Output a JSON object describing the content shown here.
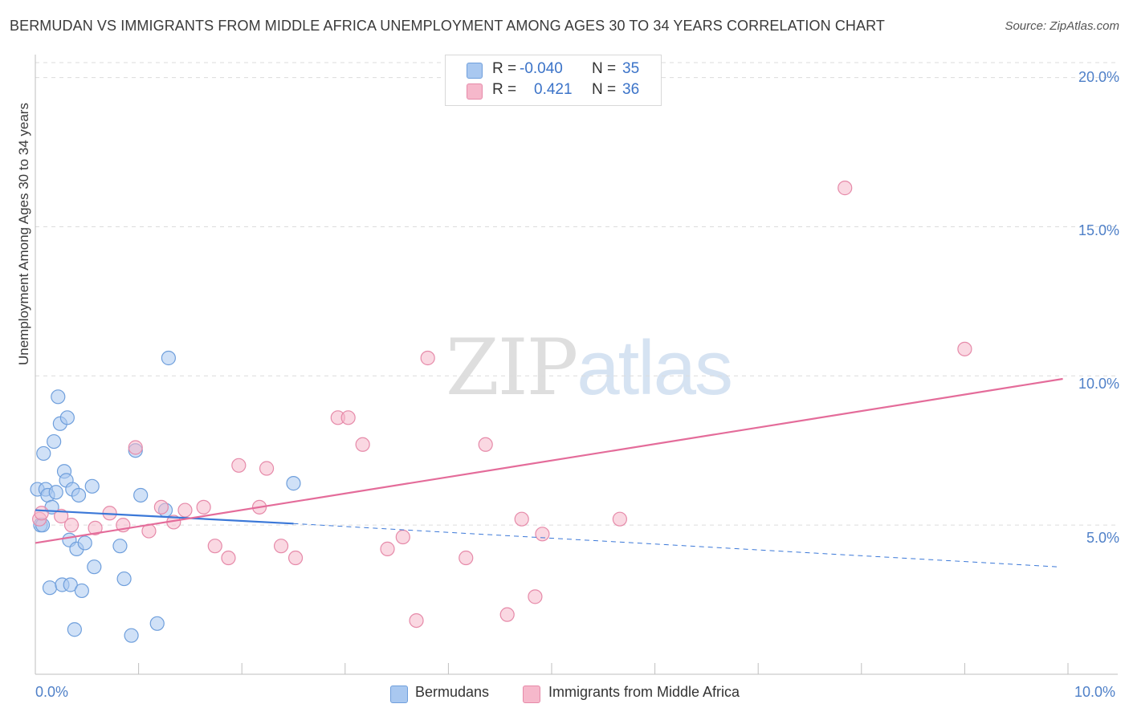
{
  "header": {
    "title": "BERMUDAN VS IMMIGRANTS FROM MIDDLE AFRICA UNEMPLOYMENT AMONG AGES 30 TO 34 YEARS CORRELATION CHART",
    "source": "Source: ZipAtlas.com"
  },
  "watermark": {
    "zip": "ZIP",
    "atlas": "atlas"
  },
  "legend": {
    "rows": [
      {
        "r_label": "R =",
        "r_value": "-0.040",
        "n_label": "N =",
        "n_value": "35",
        "color": "#a9c8f0"
      },
      {
        "r_label": "R =",
        "r_value": "0.421",
        "n_label": "N =",
        "n_value": "36",
        "color": "#f6b8cb"
      }
    ]
  },
  "bottom_legend": {
    "series1": "Bermudans",
    "series2": "Immigrants from Middle Africa"
  },
  "chart_data": {
    "type": "scatter",
    "title": "BERMUDAN VS IMMIGRANTS FROM MIDDLE AFRICA UNEMPLOYMENT AMONG AGES 30 TO 34 YEARS CORRELATION CHART",
    "xlabel": "",
    "ylabel": "Unemployment Among Ages 30 to 34 years",
    "xlim": [
      0,
      10
    ],
    "ylim": [
      0,
      20.5
    ],
    "x_tick_labels": [
      "0.0%",
      "10.0%"
    ],
    "y_ticks": [
      5,
      10,
      15,
      20
    ],
    "y_tick_labels": [
      "5.0%",
      "10.0%",
      "15.0%",
      "20.0%"
    ],
    "grid": true,
    "colors": {
      "bermudans": "#3b78d8",
      "bermudans_fill": "#a9c8f0",
      "middle_africa": "#e46c9a",
      "middle_africa_fill": "#f6b8cb"
    },
    "series": [
      {
        "name": "Bermudans",
        "points": [
          [
            0.02,
            6.2
          ],
          [
            0.05,
            5.0
          ],
          [
            0.07,
            5.0
          ],
          [
            0.08,
            7.4
          ],
          [
            0.1,
            6.2
          ],
          [
            0.12,
            6.0
          ],
          [
            0.14,
            2.9
          ],
          [
            0.16,
            5.6
          ],
          [
            0.18,
            7.8
          ],
          [
            0.2,
            6.1
          ],
          [
            0.22,
            9.3
          ],
          [
            0.24,
            8.4
          ],
          [
            0.26,
            3.0
          ],
          [
            0.28,
            6.8
          ],
          [
            0.3,
            6.5
          ],
          [
            0.31,
            8.6
          ],
          [
            0.33,
            4.5
          ],
          [
            0.34,
            3.0
          ],
          [
            0.36,
            6.2
          ],
          [
            0.38,
            1.5
          ],
          [
            0.4,
            4.2
          ],
          [
            0.42,
            6.0
          ],
          [
            0.45,
            2.8
          ],
          [
            0.48,
            4.4
          ],
          [
            0.55,
            6.3
          ],
          [
            0.57,
            3.6
          ],
          [
            0.82,
            4.3
          ],
          [
            0.86,
            3.2
          ],
          [
            0.93,
            1.3
          ],
          [
            0.97,
            7.5
          ],
          [
            1.02,
            6.0
          ],
          [
            1.18,
            1.7
          ],
          [
            1.26,
            5.5
          ],
          [
            1.29,
            10.6
          ],
          [
            2.5,
            6.4
          ]
        ],
        "trend": {
          "x0": 0.0,
          "y0": 5.5,
          "x1": 2.5,
          "y1": 5.05,
          "dash_to_x": 9.9,
          "dash_to_y": 3.6
        }
      },
      {
        "name": "Immigrants from Middle Africa",
        "points": [
          [
            0.04,
            5.2
          ],
          [
            0.06,
            5.4
          ],
          [
            0.25,
            5.3
          ],
          [
            0.35,
            5.0
          ],
          [
            0.58,
            4.9
          ],
          [
            0.72,
            5.4
          ],
          [
            0.85,
            5.0
          ],
          [
            0.97,
            7.6
          ],
          [
            1.1,
            4.8
          ],
          [
            1.22,
            5.6
          ],
          [
            1.34,
            5.1
          ],
          [
            1.45,
            5.5
          ],
          [
            1.63,
            5.6
          ],
          [
            1.74,
            4.3
          ],
          [
            1.87,
            3.9
          ],
          [
            1.97,
            7.0
          ],
          [
            2.17,
            5.6
          ],
          [
            2.24,
            6.9
          ],
          [
            2.38,
            4.3
          ],
          [
            2.52,
            3.9
          ],
          [
            2.93,
            8.6
          ],
          [
            3.03,
            8.6
          ],
          [
            3.17,
            7.7
          ],
          [
            3.41,
            4.2
          ],
          [
            3.56,
            4.6
          ],
          [
            3.69,
            1.8
          ],
          [
            3.8,
            10.6
          ],
          [
            4.17,
            3.9
          ],
          [
            4.36,
            7.7
          ],
          [
            4.57,
            2.0
          ],
          [
            4.71,
            5.2
          ],
          [
            4.84,
            2.6
          ],
          [
            4.91,
            4.7
          ],
          [
            5.66,
            5.2
          ],
          [
            7.84,
            16.3
          ],
          [
            9.0,
            10.9
          ]
        ],
        "trend": {
          "x0": 0.0,
          "y0": 4.4,
          "x1": 9.95,
          "y1": 9.9
        }
      }
    ]
  }
}
